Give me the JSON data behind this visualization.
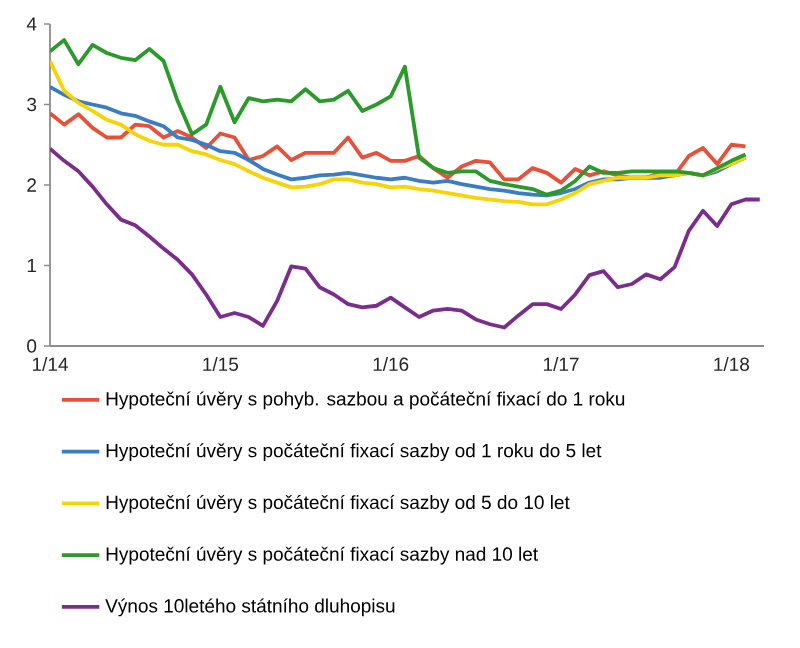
{
  "chart_data": {
    "type": "line",
    "categories": [
      "1/14",
      null,
      null,
      null,
      null,
      null,
      null,
      null,
      null,
      null,
      null,
      null,
      "1/15",
      null,
      null,
      null,
      null,
      null,
      null,
      null,
      null,
      null,
      null,
      null,
      "1/16",
      null,
      null,
      null,
      null,
      null,
      null,
      null,
      null,
      null,
      null,
      null,
      "1/17",
      null,
      null,
      null,
      null,
      null,
      null,
      null,
      null,
      null,
      null,
      null,
      "1/18",
      null,
      null
    ],
    "ylim": [
      0,
      4
    ],
    "yticks": [
      0,
      1,
      2,
      3,
      4
    ],
    "legend": "bottom",
    "series": [
      {
        "name": "Hypoteční úvěry s pohyb. sazbou a počáteční fixací do 1 roku",
        "color": "#e8503a",
        "values": [
          2.89,
          2.75,
          2.88,
          2.71,
          2.59,
          2.59,
          2.75,
          2.73,
          2.59,
          2.67,
          2.59,
          2.46,
          2.64,
          2.59,
          2.31,
          2.36,
          2.48,
          2.31,
          2.4,
          2.4,
          2.4,
          2.59,
          2.34,
          2.4,
          2.3,
          2.3,
          2.36,
          2.21,
          2.09,
          2.23,
          2.3,
          2.28,
          2.07,
          2.07,
          2.21,
          2.15,
          2.03,
          2.2,
          2.12,
          2.17,
          2.12,
          2.09,
          2.09,
          2.15,
          2.12,
          2.36,
          2.46,
          2.26,
          2.5,
          2.48,
          null
        ]
      },
      {
        "name": "Hypoteční úvěry s počáteční fixací sazby od 1 roku do 5 let",
        "color": "#3b7dc4",
        "values": [
          3.22,
          3.12,
          3.04,
          3.0,
          2.96,
          2.89,
          2.86,
          2.79,
          2.73,
          2.59,
          2.56,
          2.5,
          2.42,
          2.4,
          2.31,
          2.2,
          2.13,
          2.07,
          2.09,
          2.12,
          2.13,
          2.15,
          2.12,
          2.09,
          2.07,
          2.09,
          2.05,
          2.03,
          2.05,
          2.01,
          1.98,
          1.95,
          1.93,
          1.9,
          1.88,
          1.87,
          1.9,
          1.95,
          2.03,
          2.07,
          2.07,
          2.09,
          2.09,
          2.09,
          2.12,
          2.15,
          2.12,
          2.17,
          2.26,
          2.34,
          null
        ]
      },
      {
        "name": "Hypoteční úvěry s počáteční fixací sazby od 5 do 10 let",
        "color": "#f7d308",
        "values": [
          3.54,
          3.17,
          3.02,
          2.92,
          2.81,
          2.75,
          2.63,
          2.55,
          2.5,
          2.5,
          2.42,
          2.38,
          2.31,
          2.26,
          2.17,
          2.09,
          2.03,
          1.97,
          1.98,
          2.01,
          2.07,
          2.07,
          2.03,
          2.01,
          1.97,
          1.98,
          1.95,
          1.93,
          1.9,
          1.87,
          1.84,
          1.82,
          1.8,
          1.79,
          1.76,
          1.76,
          1.82,
          1.9,
          2.01,
          2.05,
          2.09,
          2.09,
          2.09,
          2.12,
          2.12,
          2.15,
          2.12,
          2.2,
          2.26,
          2.34,
          null
        ]
      },
      {
        "name": "Hypoteční úvěry s počáteční fixací sazby nad 10 let",
        "color": "#2a9a2a",
        "values": [
          3.66,
          3.8,
          3.5,
          3.74,
          3.64,
          3.58,
          3.55,
          3.69,
          3.54,
          3.04,
          2.63,
          2.75,
          3.22,
          2.78,
          3.08,
          3.04,
          3.06,
          3.04,
          3.19,
          3.04,
          3.06,
          3.17,
          2.92,
          3.0,
          3.1,
          3.47,
          2.34,
          2.21,
          2.15,
          2.17,
          2.17,
          2.05,
          2.01,
          1.98,
          1.95,
          1.88,
          1.93,
          2.05,
          2.23,
          2.15,
          2.15,
          2.17,
          2.17,
          2.17,
          2.17,
          2.15,
          2.12,
          2.21,
          2.3,
          2.38,
          null
        ]
      },
      {
        "name": "Výnos 10letého státního dluhopisu",
        "color": "#7b2d8e",
        "values": [
          2.45,
          2.3,
          2.17,
          1.98,
          1.76,
          1.57,
          1.5,
          1.36,
          1.21,
          1.07,
          0.89,
          0.64,
          0.36,
          0.41,
          0.36,
          0.25,
          0.56,
          0.99,
          0.96,
          0.73,
          0.64,
          0.52,
          0.48,
          0.5,
          0.6,
          0.48,
          0.36,
          0.44,
          0.46,
          0.44,
          0.33,
          0.27,
          0.23,
          0.38,
          0.52,
          0.52,
          0.46,
          0.64,
          0.88,
          0.93,
          0.73,
          0.77,
          0.89,
          0.83,
          0.98,
          1.43,
          1.68,
          1.49,
          1.76,
          1.82,
          1.82
        ]
      }
    ]
  }
}
